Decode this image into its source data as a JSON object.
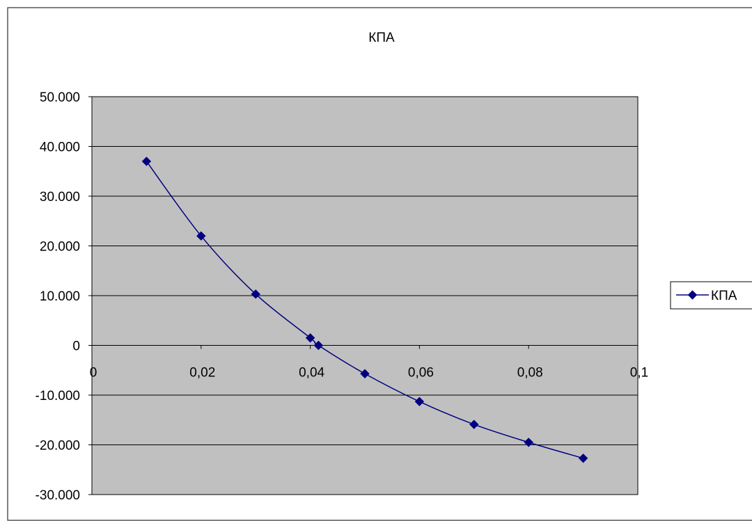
{
  "chart_data": {
    "type": "scatter",
    "title": "КПА",
    "xlabel": "",
    "ylabel": "",
    "xlim": [
      0,
      0.1
    ],
    "ylim": [
      -30000,
      50000
    ],
    "x_ticks": [
      0,
      0.02,
      0.04,
      0.06,
      0.08,
      0.1
    ],
    "x_tick_labels": [
      "0",
      "0,02",
      "0,04",
      "0,06",
      "0,08",
      "0,1"
    ],
    "y_ticks": [
      50000,
      40000,
      30000,
      20000,
      10000,
      0,
      -10000,
      -20000,
      -30000
    ],
    "y_tick_labels": [
      "50.000",
      "40.000",
      "30.000",
      "20.000",
      "10.000",
      "0",
      "-10.000",
      "-20.000",
      "-30.000"
    ],
    "grid": "horizontal",
    "plot_background": "#c0c0c0",
    "legend_position": "right",
    "series": [
      {
        "name": "КПА",
        "color": "#000080",
        "marker": "diamond",
        "smooth": true,
        "x": [
          0.01,
          0.02,
          0.03,
          0.04,
          0.0415,
          0.05,
          0.06,
          0.07,
          0.08,
          0.09
        ],
        "y": [
          37000,
          22000,
          10300,
          1500,
          0,
          -5700,
          -11300,
          -15900,
          -19500,
          -22700
        ]
      }
    ]
  }
}
